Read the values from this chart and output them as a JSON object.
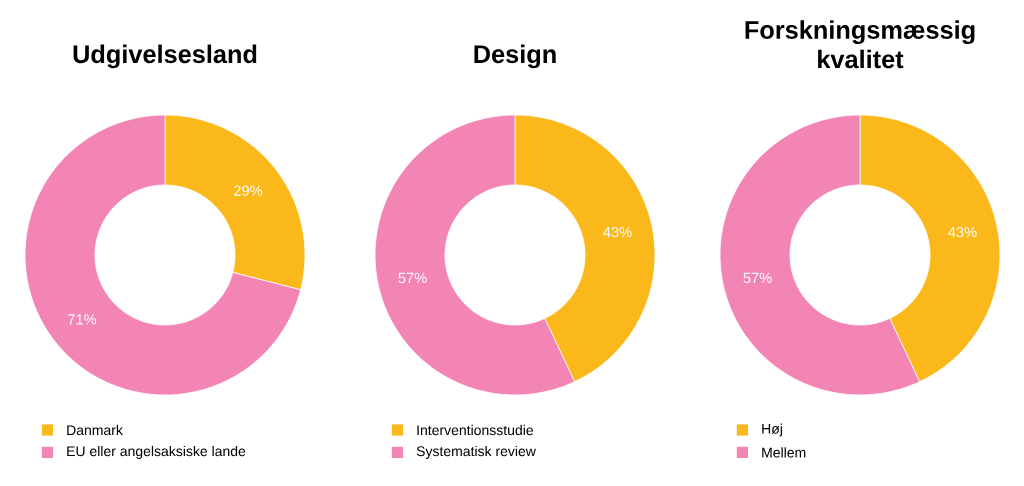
{
  "chart_data": [
    {
      "type": "donut",
      "title": "Udgivelsesland",
      "categories": [
        "Danmark",
        "EU eller angelsaksiske lande"
      ],
      "values": [
        29,
        71
      ],
      "value_labels": [
        "29%",
        "71%"
      ],
      "colors": [
        "#fbb81b",
        "#f385b5"
      ],
      "legend": "bottom"
    },
    {
      "type": "donut",
      "title": "Design",
      "categories": [
        "Interventionsstudie",
        "Systematisk review"
      ],
      "values": [
        43,
        57
      ],
      "value_labels": [
        "43%",
        "57%"
      ],
      "colors": [
        "#fbb81b",
        "#f385b5"
      ],
      "legend": "bottom"
    },
    {
      "type": "donut",
      "title": "Forskningsmæssig kvalitet",
      "categories": [
        "Høj",
        "Mellem"
      ],
      "values": [
        43,
        57
      ],
      "value_labels": [
        "43%",
        "57%"
      ],
      "colors": [
        "#fbb81b",
        "#f385b5"
      ],
      "legend": "bottom"
    }
  ]
}
